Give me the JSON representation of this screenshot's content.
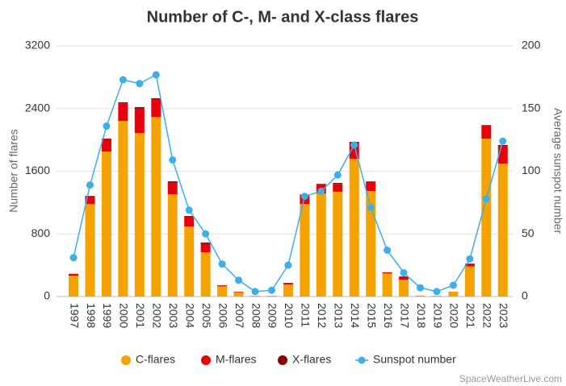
{
  "chart_data": {
    "type": "bar",
    "stacked": true,
    "title": "Number of C-, M- and X-class flares",
    "y_label": "Number of flares",
    "y2_label": "Average sunspot number",
    "source": "SpaceWeatherLive.com",
    "categories": [
      "1997",
      "1998",
      "1999",
      "2000",
      "2001",
      "2002",
      "2003",
      "2004",
      "2005",
      "2006",
      "2007",
      "2008",
      "2009",
      "2010",
      "2011",
      "2012",
      "2013",
      "2014",
      "2015",
      "2016",
      "2017",
      "2018",
      "2019",
      "2020",
      "2021",
      "2022",
      "2023"
    ],
    "series": [
      {
        "name": "C-flares",
        "color": "#f5a300",
        "values": [
          265,
          1183,
          1852,
          2243,
          2089,
          2294,
          1307,
          895,
          566,
          130,
          55,
          8,
          10,
          155,
          1183,
          1317,
          1338,
          1759,
          1348,
          295,
          215,
          13,
          10,
          60,
          385,
          2017,
          1698
        ]
      },
      {
        "name": "M-flares",
        "color": "#e8000b",
        "values": [
          23,
          100,
          160,
          225,
          310,
          220,
          150,
          125,
          105,
          12,
          7,
          1,
          0,
          20,
          112,
          115,
          100,
          200,
          120,
          15,
          38,
          0,
          0,
          2,
          35,
          166,
          225
        ]
      },
      {
        "name": "X-flares",
        "color": "#8b0000",
        "values": [
          2,
          3,
          5,
          12,
          20,
          17,
          14,
          9,
          18,
          2,
          0,
          0,
          0,
          0,
          8,
          7,
          12,
          16,
          3,
          0,
          4,
          0,
          0,
          0,
          2,
          7,
          12
        ]
      },
      {
        "name": "Sunspot number",
        "color": "#3daee9",
        "type": "line",
        "axis": "y2",
        "values": [
          31,
          89,
          136,
          173,
          170,
          177,
          109,
          69,
          50,
          26,
          13,
          4,
          5,
          25,
          80,
          84,
          97,
          121,
          71,
          37,
          19,
          7,
          4,
          9,
          30,
          78,
          124
        ]
      }
    ],
    "ylim": [
      0,
      3200
    ],
    "yticks": [
      0,
      800,
      1600,
      2400,
      3200
    ],
    "y2lim": [
      0,
      200
    ],
    "y2ticks": [
      0,
      50,
      100,
      150,
      200
    ],
    "grid": true,
    "legend": "bottom"
  }
}
